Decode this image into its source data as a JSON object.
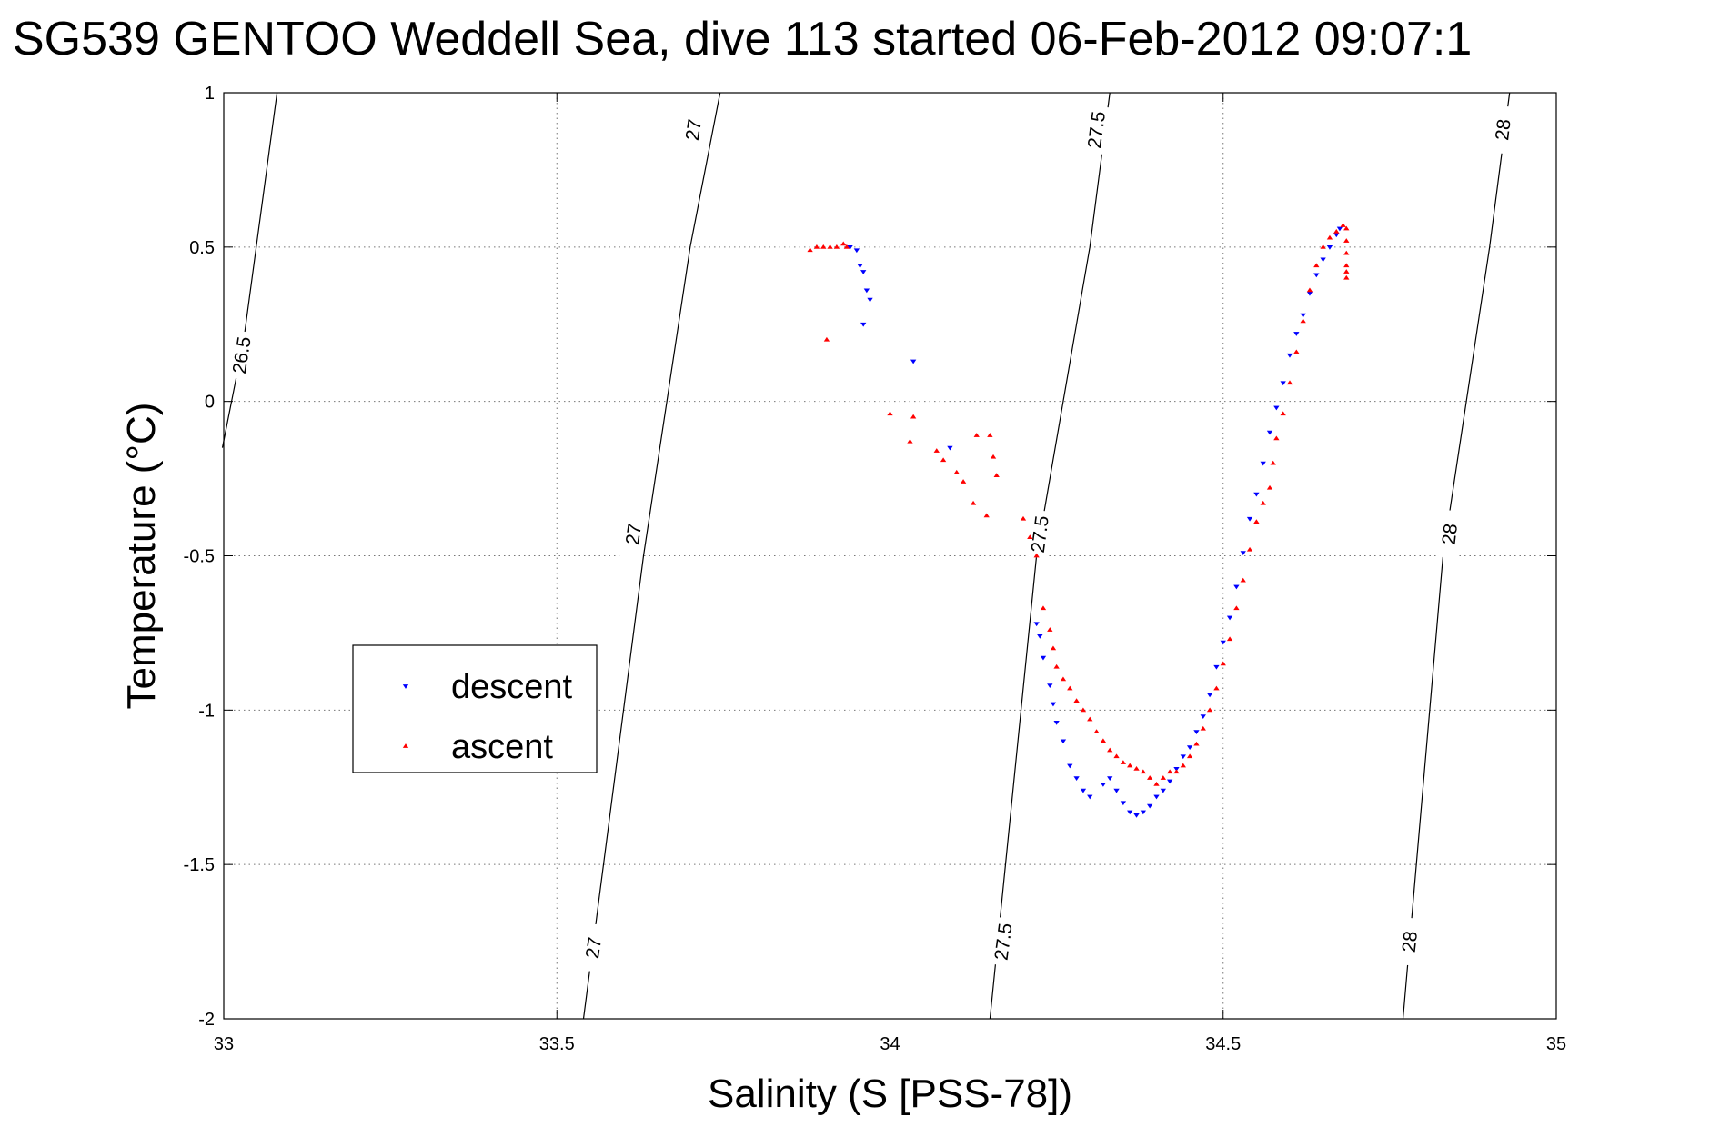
{
  "chart_data": {
    "type": "scatter",
    "title": "SG539 GENTOO Weddell Sea, dive 113 started 06-Feb-2012 09:07:1",
    "xlabel": "Salinity (S [PSS-78])",
    "ylabel": "Temperature (°C)",
    "xlim": [
      33,
      35
    ],
    "ylim": [
      -2,
      1
    ],
    "xticks": [
      33,
      33.5,
      34,
      34.5,
      35
    ],
    "xtick_labels": [
      "33",
      "33.5",
      "34",
      "34.5",
      "35"
    ],
    "yticks": [
      1,
      0.5,
      0,
      -0.5,
      -1,
      -1.5,
      -2
    ],
    "ytick_labels": [
      "1",
      "0.5",
      "0",
      "-0.5",
      "-1",
      "-1.5",
      "-2"
    ],
    "grid": true,
    "legend_position": "left-middle",
    "density_contours": [
      {
        "label": "26.5",
        "points": [
          [
            32.998,
            -0.15
          ],
          [
            33.03,
            0.2
          ],
          [
            33.08,
            1.0
          ]
        ],
        "label_positions": [
          [
            33.027,
            0.15
          ]
        ]
      },
      {
        "label": "27",
        "points": [
          [
            33.54,
            -2.0
          ],
          [
            33.63,
            -0.5
          ],
          [
            33.7,
            0.5
          ],
          [
            33.745,
            1.0
          ]
        ],
        "label_positions": [
          [
            33.555,
            -1.77
          ],
          [
            33.615,
            -0.43
          ],
          [
            33.705,
            0.88
          ]
        ]
      },
      {
        "label": "27.5",
        "points": [
          [
            34.15,
            -2.0
          ],
          [
            34.22,
            -0.5
          ],
          [
            34.3,
            0.5
          ],
          [
            34.33,
            1.0
          ]
        ],
        "label_positions": [
          [
            34.17,
            -1.75
          ],
          [
            34.225,
            -0.43
          ],
          [
            34.31,
            0.88
          ]
        ]
      },
      {
        "label": "28",
        "points": [
          [
            34.77,
            -2.0
          ],
          [
            34.83,
            -0.5
          ],
          [
            34.9,
            0.5
          ],
          [
            34.93,
            1.0
          ]
        ],
        "label_positions": [
          [
            34.78,
            -1.75
          ],
          [
            34.84,
            -0.43
          ],
          [
            34.92,
            0.88
          ]
        ]
      }
    ],
    "series": [
      {
        "name": "descent",
        "marker": "triangle-down",
        "color": "#0000ff",
        "points": [
          [
            33.94,
            0.5
          ],
          [
            33.95,
            0.49
          ],
          [
            33.955,
            0.44
          ],
          [
            33.96,
            0.42
          ],
          [
            33.965,
            0.36
          ],
          [
            33.97,
            0.33
          ],
          [
            33.96,
            0.25
          ],
          [
            34.035,
            0.13
          ],
          [
            34.09,
            -0.15
          ],
          [
            34.22,
            -0.72
          ],
          [
            34.225,
            -0.76
          ],
          [
            34.23,
            -0.83
          ],
          [
            34.24,
            -0.92
          ],
          [
            34.245,
            -0.98
          ],
          [
            34.25,
            -1.04
          ],
          [
            34.26,
            -1.1
          ],
          [
            34.27,
            -1.18
          ],
          [
            34.28,
            -1.22
          ],
          [
            34.29,
            -1.26
          ],
          [
            34.3,
            -1.28
          ],
          [
            34.32,
            -1.24
          ],
          [
            34.33,
            -1.22
          ],
          [
            34.34,
            -1.26
          ],
          [
            34.35,
            -1.3
          ],
          [
            34.36,
            -1.33
          ],
          [
            34.37,
            -1.34
          ],
          [
            34.38,
            -1.33
          ],
          [
            34.39,
            -1.31
          ],
          [
            34.4,
            -1.28
          ],
          [
            34.41,
            -1.26
          ],
          [
            34.42,
            -1.23
          ],
          [
            34.43,
            -1.19
          ],
          [
            34.44,
            -1.15
          ],
          [
            34.45,
            -1.12
          ],
          [
            34.46,
            -1.07
          ],
          [
            34.47,
            -1.02
          ],
          [
            34.48,
            -0.95
          ],
          [
            34.49,
            -0.86
          ],
          [
            34.5,
            -0.78
          ],
          [
            34.51,
            -0.7
          ],
          [
            34.52,
            -0.6
          ],
          [
            34.53,
            -0.49
          ],
          [
            34.54,
            -0.38
          ],
          [
            34.55,
            -0.3
          ],
          [
            34.56,
            -0.2
          ],
          [
            34.57,
            -0.1
          ],
          [
            34.58,
            -0.02
          ],
          [
            34.59,
            0.06
          ],
          [
            34.6,
            0.15
          ],
          [
            34.61,
            0.22
          ],
          [
            34.62,
            0.28
          ],
          [
            34.63,
            0.35
          ],
          [
            34.64,
            0.41
          ],
          [
            34.65,
            0.46
          ],
          [
            34.66,
            0.5
          ],
          [
            34.67,
            0.54
          ],
          [
            34.675,
            0.56
          ]
        ]
      },
      {
        "name": "ascent",
        "marker": "triangle-up",
        "color": "#ff0000",
        "points": [
          [
            33.88,
            0.49
          ],
          [
            33.89,
            0.5
          ],
          [
            33.9,
            0.5
          ],
          [
            33.91,
            0.5
          ],
          [
            33.92,
            0.5
          ],
          [
            33.93,
            0.51
          ],
          [
            33.935,
            0.5
          ],
          [
            33.905,
            0.2
          ],
          [
            34.0,
            -0.04
          ],
          [
            34.035,
            -0.05
          ],
          [
            34.03,
            -0.13
          ],
          [
            34.07,
            -0.16
          ],
          [
            34.08,
            -0.19
          ],
          [
            34.1,
            -0.23
          ],
          [
            34.11,
            -0.26
          ],
          [
            34.13,
            -0.11
          ],
          [
            34.15,
            -0.11
          ],
          [
            34.155,
            -0.18
          ],
          [
            34.16,
            -0.24
          ],
          [
            34.145,
            -0.37
          ],
          [
            34.125,
            -0.33
          ],
          [
            34.2,
            -0.38
          ],
          [
            34.21,
            -0.44
          ],
          [
            34.22,
            -0.5
          ],
          [
            34.23,
            -0.67
          ],
          [
            34.24,
            -0.74
          ],
          [
            34.245,
            -0.8
          ],
          [
            34.25,
            -0.86
          ],
          [
            34.26,
            -0.9
          ],
          [
            34.27,
            -0.93
          ],
          [
            34.28,
            -0.97
          ],
          [
            34.29,
            -1.0
          ],
          [
            34.3,
            -1.03
          ],
          [
            34.31,
            -1.07
          ],
          [
            34.32,
            -1.1
          ],
          [
            34.33,
            -1.13
          ],
          [
            34.34,
            -1.15
          ],
          [
            34.35,
            -1.17
          ],
          [
            34.36,
            -1.18
          ],
          [
            34.37,
            -1.19
          ],
          [
            34.38,
            -1.2
          ],
          [
            34.39,
            -1.22
          ],
          [
            34.4,
            -1.24
          ],
          [
            34.41,
            -1.22
          ],
          [
            34.42,
            -1.2
          ],
          [
            34.43,
            -1.2
          ],
          [
            34.44,
            -1.18
          ],
          [
            34.45,
            -1.15
          ],
          [
            34.46,
            -1.11
          ],
          [
            34.47,
            -1.06
          ],
          [
            34.48,
            -1.0
          ],
          [
            34.49,
            -0.93
          ],
          [
            34.5,
            -0.85
          ],
          [
            34.51,
            -0.77
          ],
          [
            34.52,
            -0.67
          ],
          [
            34.53,
            -0.58
          ],
          [
            34.54,
            -0.48
          ],
          [
            34.55,
            -0.39
          ],
          [
            34.56,
            -0.33
          ],
          [
            34.57,
            -0.28
          ],
          [
            34.575,
            -0.2
          ],
          [
            34.58,
            -0.12
          ],
          [
            34.59,
            -0.04
          ],
          [
            34.6,
            0.06
          ],
          [
            34.61,
            0.16
          ],
          [
            34.62,
            0.26
          ],
          [
            34.63,
            0.36
          ],
          [
            34.64,
            0.44
          ],
          [
            34.65,
            0.5
          ],
          [
            34.66,
            0.53
          ],
          [
            34.67,
            0.55
          ],
          [
            34.68,
            0.57
          ],
          [
            34.685,
            0.56
          ],
          [
            34.685,
            0.52
          ],
          [
            34.685,
            0.48
          ],
          [
            34.685,
            0.44
          ],
          [
            34.685,
            0.42
          ],
          [
            34.685,
            0.4
          ]
        ]
      }
    ]
  }
}
